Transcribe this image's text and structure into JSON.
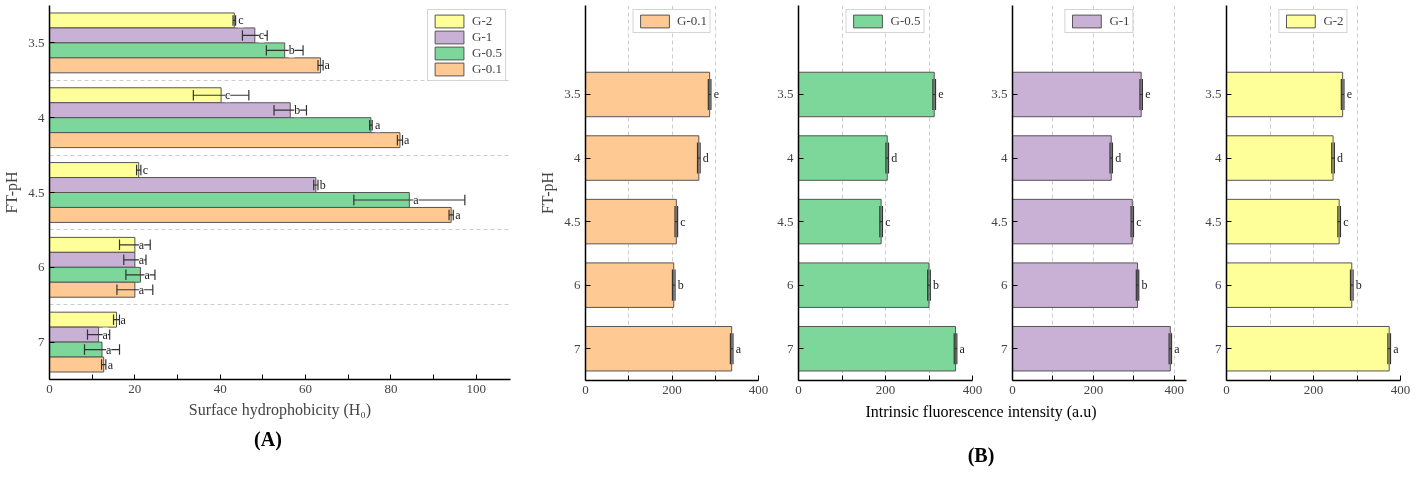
{
  "chart_data": [
    {
      "type": "bar",
      "orientation": "horizontal",
      "xlabel": "Surface hydrophobicity (H₀)",
      "ylabel": "FT-pH",
      "annotations": [
        "(A)"
      ],
      "categories": [
        "3.5",
        "4",
        "4.5",
        "6",
        "7"
      ],
      "xlim": [
        0,
        108
      ],
      "xticks": [
        0,
        {
          "value": 10,
          "label": null
        },
        20,
        {
          "value": 30,
          "label": null
        },
        40,
        {
          "value": 50,
          "label": null
        },
        60,
        {
          "value": 70,
          "label": null
        },
        80,
        {
          "value": 90,
          "label": null
        },
        100
      ],
      "grid": "y",
      "legend": "top right",
      "series": [
        {
          "name": "G-2",
          "color": "#ffff99",
          "values": [
            43.3,
            40.2,
            20.9,
            20.0,
            15.7
          ],
          "errors": [
            0.3,
            6.5,
            0.5,
            3.6,
            0.7
          ],
          "value_labels": [
            "c",
            "c",
            "c",
            "a",
            "a"
          ]
        },
        {
          "name": "G-1",
          "color": "#c9b1d6",
          "values": [
            48.1,
            56.4,
            62.4,
            20.0,
            11.5
          ],
          "errors": [
            2.9,
            3.8,
            0.5,
            2.6,
            2.6
          ],
          "value_labels": [
            "c",
            "b",
            "b",
            "a",
            "a"
          ]
        },
        {
          "name": "G-0.5",
          "color": "#7dd69a",
          "values": [
            55.1,
            75.3,
            84.3,
            21.3,
            12.3
          ],
          "errors": [
            4.3,
            0.3,
            13,
            3.4,
            4.1
          ],
          "value_labels": [
            "b",
            "a",
            "a",
            "a",
            "a"
          ]
        },
        {
          "name": "G-0.1",
          "color": "#ffc993",
          "values": [
            63.5,
            82.1,
            94.1,
            20.0,
            12.7
          ],
          "errors": [
            0.6,
            0.6,
            0.5,
            4.2,
            0.5
          ],
          "value_labels": [
            "a",
            "a",
            "a",
            "a",
            "a"
          ]
        }
      ]
    },
    {
      "type": "bar",
      "orientation": "horizontal",
      "ylabel": "FT-pH",
      "categories": [
        "3.5",
        "4",
        "4.5",
        "6",
        "7"
      ],
      "xlim": [
        0,
        400
      ],
      "xticks": [
        0,
        {
          "value": 100,
          "label": null
        },
        200,
        {
          "value": 300,
          "label": null
        },
        400
      ],
      "grid": "x",
      "legend": "top",
      "series": [
        {
          "name": "G-0.1",
          "color": "#ffc993",
          "values": [
            287,
            262,
            210,
            204,
            338
          ],
          "errors": [
            3,
            3,
            3,
            3,
            3
          ],
          "value_labels": [
            "e",
            "d",
            "c",
            "b",
            "a"
          ]
        }
      ]
    },
    {
      "type": "bar",
      "orientation": "horizontal",
      "xlabel": "Intrinsic fluorescence intensity (a.u)",
      "annotations": [
        "(B)"
      ],
      "categories": [
        "3.5",
        "4",
        "4.5",
        "6",
        "7"
      ],
      "xlim": [
        0,
        400
      ],
      "xticks": [
        0,
        {
          "value": 100,
          "label": null
        },
        200,
        {
          "value": 300,
          "label": null
        },
        400
      ],
      "grid": "x",
      "legend": "top",
      "series": [
        {
          "name": "G-0.5",
          "color": "#7dd69a",
          "values": [
            312,
            204,
            190,
            300,
            361
          ],
          "errors": [
            3,
            3,
            3,
            3,
            3
          ],
          "value_labels": [
            "e",
            "d",
            "c",
            "b",
            "a"
          ]
        }
      ]
    },
    {
      "type": "bar",
      "orientation": "horizontal",
      "categories": [
        "3.5",
        "4",
        "4.5",
        "6",
        "7"
      ],
      "xlim": [
        0,
        430
      ],
      "xticks": [
        0,
        {
          "value": 100,
          "label": null
        },
        200,
        {
          "value": 300,
          "label": null
        },
        400
      ],
      "grid": "x",
      "legend": "top",
      "series": [
        {
          "name": "G-1",
          "color": "#c9b1d6",
          "values": [
            318,
            244,
            296,
            309,
            390
          ],
          "errors": [
            3,
            3,
            3,
            3,
            3
          ],
          "value_labels": [
            "e",
            "d",
            "c",
            "b",
            "a"
          ]
        }
      ]
    },
    {
      "type": "bar",
      "orientation": "horizontal",
      "categories": [
        "3.5",
        "4",
        "4.5",
        "6",
        "7"
      ],
      "xlim": [
        0,
        400
      ],
      "xticks": [
        0,
        {
          "value": 100,
          "label": null
        },
        200,
        {
          "value": 300,
          "label": null
        },
        400
      ],
      "grid": "x",
      "legend": "top",
      "series": [
        {
          "name": "G-2",
          "color": "#ffff99",
          "values": [
            267,
            245,
            259,
            288,
            374
          ],
          "errors": [
            3,
            3,
            3,
            3,
            3
          ],
          "value_labels": [
            "e",
            "d",
            "c",
            "b",
            "a"
          ]
        }
      ]
    }
  ]
}
